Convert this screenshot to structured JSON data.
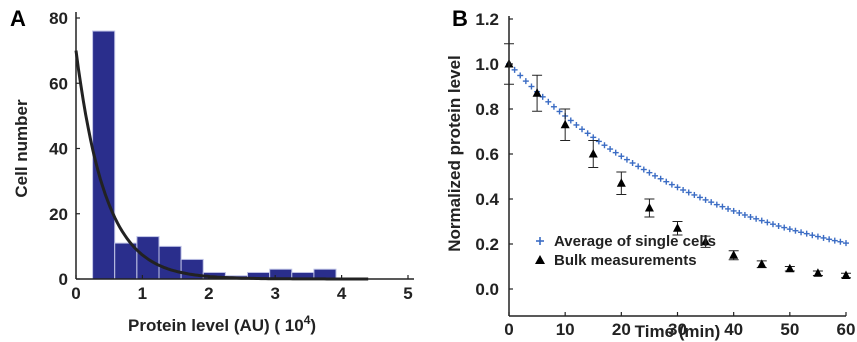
{
  "chart_data": [
    {
      "panel": "A",
      "type": "bar",
      "xlabel": "Protein level (AU) (   10",
      "xlabel_sup": "4",
      "xlabel_end": ")",
      "ylabel": "Cell number",
      "xlim": [
        0,
        5
      ],
      "ylim": [
        0,
        80
      ],
      "xticks": [
        "0",
        "1",
        "2",
        "3",
        "4",
        "5"
      ],
      "yticks": [
        "0",
        "20",
        "40",
        "60",
        "80"
      ],
      "bin_width": 0.333,
      "bins_start": [
        0.25,
        0.583,
        0.917,
        1.25,
        1.583,
        1.917,
        2.25,
        2.583,
        2.917,
        3.25,
        3.583
      ],
      "values": [
        76,
        11,
        13,
        10,
        6,
        2,
        1,
        2,
        3,
        2,
        3
      ],
      "bar_color": "#2a2e8c",
      "fit_curve": {
        "type": "exponential",
        "a": 70,
        "b": 2.25,
        "color": "#222222"
      }
    },
    {
      "panel": "B",
      "type": "scatter",
      "xlabel": "Time (min)",
      "ylabel": "Normalized protein level",
      "xlim": [
        0,
        60
      ],
      "ylim": [
        -0.12,
        1.2
      ],
      "xticks": [
        "0",
        "10",
        "20",
        "30",
        "40",
        "50",
        "60"
      ],
      "yticks": [
        "0.0",
        "0.2",
        "0.4",
        "0.6",
        "0.8",
        "1.0",
        "1.2"
      ],
      "series": [
        {
          "name": "Average of single cells",
          "marker": "plus",
          "color": "#3b6cc4",
          "x": [
            0,
            1,
            2,
            3,
            4,
            5,
            6,
            7,
            8,
            9,
            10,
            11,
            12,
            13,
            14,
            15,
            16,
            17,
            18,
            19,
            20,
            21,
            22,
            23,
            24,
            25,
            26,
            27,
            28,
            29,
            30,
            31,
            32,
            33,
            34,
            35,
            36,
            37,
            38,
            39,
            40,
            41,
            42,
            43,
            44,
            45,
            46,
            47,
            48,
            49,
            50,
            51,
            52,
            53,
            54,
            55,
            56,
            57,
            58,
            59,
            60
          ],
          "y": [
            1.0,
            0.974,
            0.949,
            0.924,
            0.9,
            0.877,
            0.854,
            0.832,
            0.81,
            0.789,
            0.769,
            0.749,
            0.729,
            0.71,
            0.692,
            0.674,
            0.656,
            0.639,
            0.622,
            0.606,
            0.59,
            0.575,
            0.56,
            0.545,
            0.531,
            0.517,
            0.503,
            0.49,
            0.477,
            0.464,
            0.452,
            0.44,
            0.429,
            0.418,
            0.407,
            0.396,
            0.386,
            0.375,
            0.366,
            0.356,
            0.347,
            0.338,
            0.329,
            0.32,
            0.312,
            0.304,
            0.296,
            0.288,
            0.28,
            0.273,
            0.266,
            0.259,
            0.252,
            0.246,
            0.239,
            0.233,
            0.227,
            0.221,
            0.215,
            0.21,
            0.204
          ]
        },
        {
          "name": "Bulk measurements",
          "marker": "triangle",
          "color": "#000000",
          "x": [
            0,
            5,
            10,
            15,
            20,
            25,
            30,
            35,
            40,
            45,
            50,
            55,
            60
          ],
          "y": [
            1.0,
            0.87,
            0.73,
            0.6,
            0.47,
            0.36,
            0.27,
            0.21,
            0.15,
            0.11,
            0.09,
            0.07,
            0.06
          ],
          "err": [
            0.09,
            0.08,
            0.07,
            0.06,
            0.05,
            0.04,
            0.03,
            0.025,
            0.02,
            0.015,
            0.01,
            0.01,
            0.01
          ]
        }
      ],
      "legend_position": "bottom-left"
    }
  ]
}
